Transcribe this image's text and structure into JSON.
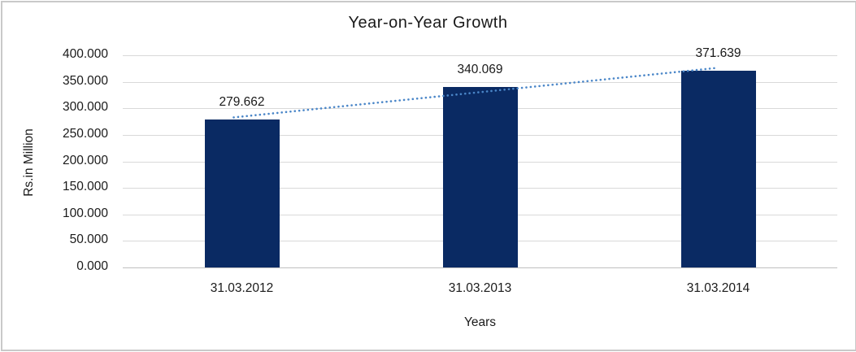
{
  "chart_data": {
    "type": "bar",
    "title": "Year-on-Year Growth",
    "xlabel": "Years",
    "ylabel": "Rs.in Million",
    "categories": [
      "31.03.2012",
      "31.03.2013",
      "31.03.2014"
    ],
    "values": [
      279.662,
      340.069,
      371.639
    ],
    "data_labels": [
      "279.662",
      "340.069",
      "371.639"
    ],
    "ylim": [
      0,
      400
    ],
    "ytick_step": 50,
    "ytick_labels": [
      "0.000",
      "50.000",
      "100.000",
      "150.000",
      "200.000",
      "250.000",
      "300.000",
      "350.000",
      "400.000"
    ],
    "grid": true,
    "legend": "none",
    "trendline": {
      "type": "linear",
      "style": "dotted"
    },
    "colors": {
      "bar": "#0a2a63",
      "trendline": "#4a86c8",
      "gridline": "#d9d9d9",
      "axis_line": "#bfbfbf",
      "text": "#1a1a1a",
      "frame_border": "#c9c9c9",
      "background": "#ffffff"
    }
  }
}
